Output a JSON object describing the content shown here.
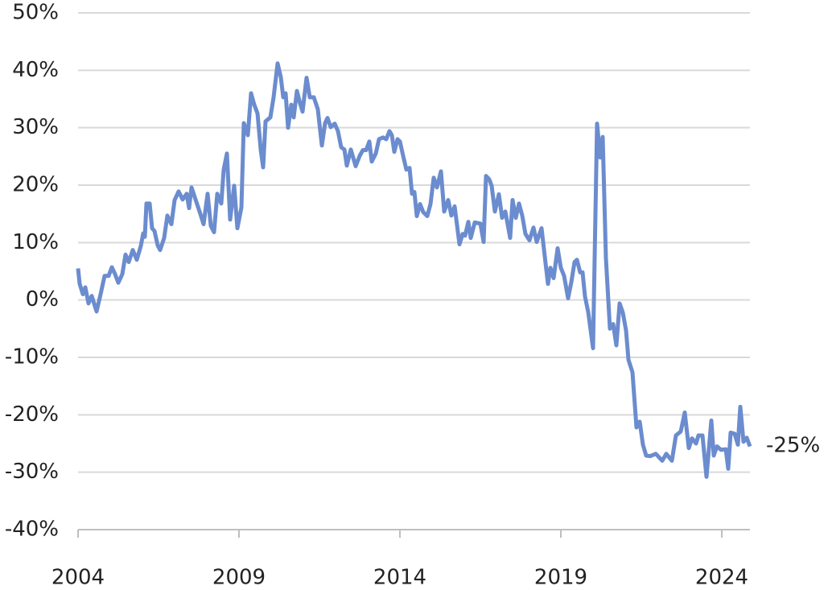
{
  "chart_data": {
    "type": "line",
    "x": [
      2004,
      2004.05,
      2004.15,
      2004.225,
      2004.325,
      2004.425,
      2004.575,
      2004.7,
      2004.825,
      2004.95,
      2005.05,
      2005.15,
      2005.25,
      2005.375,
      2005.475,
      2005.575,
      2005.7,
      2005.825,
      2005.95,
      2006.025,
      2006.075,
      2006.125,
      2006.225,
      2006.3,
      2006.375,
      2006.475,
      2006.55,
      2006.675,
      2006.775,
      2006.9,
      2007,
      2007.125,
      2007.25,
      2007.375,
      2007.45,
      2007.525,
      2007.65,
      2007.775,
      2007.9,
      2008.025,
      2008.125,
      2008.225,
      2008.325,
      2008.45,
      2008.525,
      2008.625,
      2008.725,
      2008.85,
      2008.95,
      2009.075,
      2009.15,
      2009.275,
      2009.375,
      2009.475,
      2009.575,
      2009.675,
      2009.75,
      2009.825,
      2009.975,
      2010.075,
      2010.2,
      2010.3,
      2010.375,
      2010.45,
      2010.525,
      2010.625,
      2010.7,
      2010.8,
      2010.9,
      2010.975,
      2011.1,
      2011.2,
      2011.325,
      2011.45,
      2011.575,
      2011.675,
      2011.75,
      2011.85,
      2011.975,
      2012.075,
      2012.175,
      2012.275,
      2012.35,
      2012.475,
      2012.625,
      2012.75,
      2012.85,
      2012.95,
      2013.05,
      2013.125,
      2013.25,
      2013.35,
      2013.475,
      2013.575,
      2013.675,
      2013.75,
      2013.825,
      2013.925,
      2014,
      2014.1,
      2014.2,
      2014.3,
      2014.375,
      2014.45,
      2014.525,
      2014.625,
      2014.725,
      2014.85,
      2014.95,
      2015.05,
      2015.15,
      2015.275,
      2015.375,
      2015.5,
      2015.6,
      2015.7,
      2015.85,
      2015.95,
      2016.025,
      2016.125,
      2016.2,
      2016.325,
      2016.5,
      2016.6,
      2016.675,
      2016.775,
      2016.85,
      2016.95,
      2017.075,
      2017.175,
      2017.275,
      2017.425,
      2017.5,
      2017.6,
      2017.7,
      2017.8,
      2017.9,
      2018.025,
      2018.15,
      2018.25,
      2018.4,
      2018.525,
      2018.6,
      2018.675,
      2018.775,
      2018.9,
      2019,
      2019.1,
      2019.225,
      2019.325,
      2019.425,
      2019.5,
      2019.6,
      2019.675,
      2019.75,
      2019.85,
      2020,
      2020.125,
      2020.225,
      2020.3,
      2020.4,
      2020.525,
      2020.625,
      2020.725,
      2020.825,
      2020.925,
      2021.025,
      2021.1,
      2021.225,
      2021.35,
      2021.45,
      2021.55,
      2021.65,
      2021.775,
      2021.95,
      2022.15,
      2022.275,
      2022.45,
      2022.575,
      2022.725,
      2022.85,
      2022.975,
      2023.075,
      2023.2,
      2023.275,
      2023.4,
      2023.525,
      2023.675,
      2023.75,
      2023.85,
      2023.975,
      2024.125,
      2024.2,
      2024.275,
      2024.4,
      2024.5,
      2024.575,
      2024.675,
      2024.775,
      2024.875
    ],
    "series": [
      {
        "color": "#6b8cce",
        "values": [
          5.5,
          2.8,
          1,
          2.2,
          -0.6,
          0.7,
          -2,
          1,
          4.2,
          4.2,
          5.7,
          4.5,
          3,
          4.5,
          7.9,
          6.6,
          8.7,
          7,
          9.4,
          11.6,
          11,
          16.8,
          16.8,
          12.5,
          12,
          9.5,
          8.7,
          10.8,
          14.7,
          13.2,
          17.4,
          18.9,
          17.5,
          18.5,
          16,
          19.6,
          17.5,
          15.4,
          13.2,
          18.5,
          12.9,
          11.8,
          18.5,
          16.8,
          22.7,
          25.5,
          14,
          19.9,
          12.5,
          16.1,
          30.8,
          28.7,
          36,
          34,
          32.5,
          26.2,
          23.1,
          31.1,
          31.8,
          35.3,
          41.2,
          38.8,
          35.3,
          36,
          30,
          34,
          31.8,
          36.4,
          34.2,
          32.8,
          38.7,
          35.3,
          35.3,
          33.2,
          26.9,
          30.8,
          31.7,
          30.1,
          30.7,
          29.4,
          26.6,
          26.2,
          23.4,
          26.2,
          23.3,
          25.1,
          26.1,
          26.1,
          27.6,
          24.1,
          25.5,
          28,
          28.3,
          28,
          29.4,
          28.7,
          25.8,
          28,
          27.6,
          25.1,
          22.7,
          23,
          18.5,
          18.8,
          14.6,
          16.7,
          15.3,
          14.6,
          16.7,
          21.3,
          19.6,
          22.4,
          15.4,
          17.4,
          14.7,
          16.3,
          9.7,
          11.5,
          11.2,
          13.6,
          10.8,
          13.5,
          13.3,
          10.1,
          21.6,
          21,
          19.9,
          15.4,
          18.4,
          14.3,
          15.4,
          10.8,
          17.4,
          14.3,
          16.8,
          14.7,
          11.5,
          10.4,
          12.6,
          10.1,
          12.5,
          6.4,
          2.8,
          5.6,
          3.8,
          9,
          5.6,
          4.2,
          0.3,
          3.1,
          6.6,
          7,
          4.8,
          4.8,
          0.6,
          -2.1,
          -8.4,
          30.7,
          24.8,
          28.4,
          7.3,
          -5,
          -4.2,
          -7.9,
          -0.6,
          -2.2,
          -5.3,
          -10.4,
          -12.6,
          -22.2,
          -21.2,
          -25.2,
          -27.1,
          -27.2,
          -26.8,
          -28,
          -26.8,
          -28,
          -23.6,
          -22.9,
          -19.6,
          -25.8,
          -24.1,
          -25,
          -23.6,
          -23.6,
          -30.8,
          -21,
          -27.1,
          -25.5,
          -26.1,
          -26,
          -29.4,
          -23.1,
          -23.3,
          -25.2,
          -18.6,
          -24.7,
          -24,
          -25.5
        ]
      }
    ],
    "xlim": [
      2004,
      2024.875
    ],
    "xticks": [
      2004,
      2009,
      2014,
      2019,
      2024
    ],
    "ylim": [
      -40,
      50
    ],
    "yticks": [
      {
        "value": -40,
        "label": "-40%"
      },
      {
        "value": -30,
        "label": "-30%"
      },
      {
        "value": -20,
        "label": "-20%"
      },
      {
        "value": -10,
        "label": "-10%"
      },
      {
        "value": 0,
        "label": "0%"
      },
      {
        "value": 10,
        "label": "10%"
      },
      {
        "value": 20,
        "label": "20%"
      },
      {
        "value": 30,
        "label": "30%"
      },
      {
        "value": 40,
        "label": "40%"
      },
      {
        "value": 50,
        "label": "50%"
      }
    ],
    "grid": true,
    "annotation": "-25%"
  }
}
